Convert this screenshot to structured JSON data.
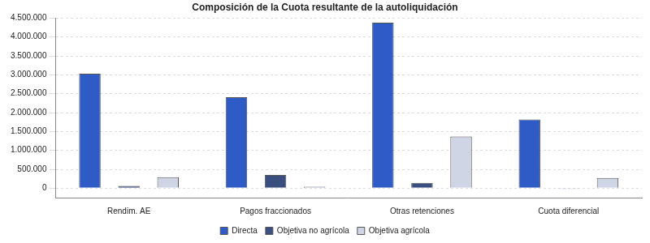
{
  "chart_data": {
    "type": "bar",
    "title": "Composición de la Cuota resultante de la autoliquidación",
    "categories": [
      "Rendim. AE",
      "Pagos fraccionados",
      "Otras retenciones",
      "Cuota diferencial"
    ],
    "series": [
      {
        "name": "Directa",
        "color": "#2f5bc7",
        "values": [
          3030000,
          2410000,
          4380000,
          1820000
        ]
      },
      {
        "name": "Objetiva no agrícola",
        "color": "#3a4f7f",
        "values": [
          60000,
          350000,
          140000,
          -20000
        ]
      },
      {
        "name": "Objetiva agrícola",
        "color": "#d0d5e6",
        "values": [
          290000,
          40000,
          1370000,
          270000
        ]
      }
    ],
    "ylim": [
      -250000,
      4500000
    ],
    "yticks": [
      0,
      {
        "value": 500000,
        "label": "500.000"
      },
      {
        "value": 1000000,
        "label": "1.000.000"
      },
      {
        "value": 1500000,
        "label": "1.500.000"
      },
      {
        "value": 2000000,
        "label": "2.000.000"
      },
      {
        "value": 2500000,
        "label": "2.500.000"
      },
      {
        "value": 3000000,
        "label": "3.000.000"
      },
      {
        "value": 3500000,
        "label": "3.500.000"
      },
      {
        "value": 4000000,
        "label": "4.000.000"
      },
      {
        "value": 4500000,
        "label": "4.500.000"
      }
    ],
    "grid": true,
    "legend": "bottom"
  }
}
